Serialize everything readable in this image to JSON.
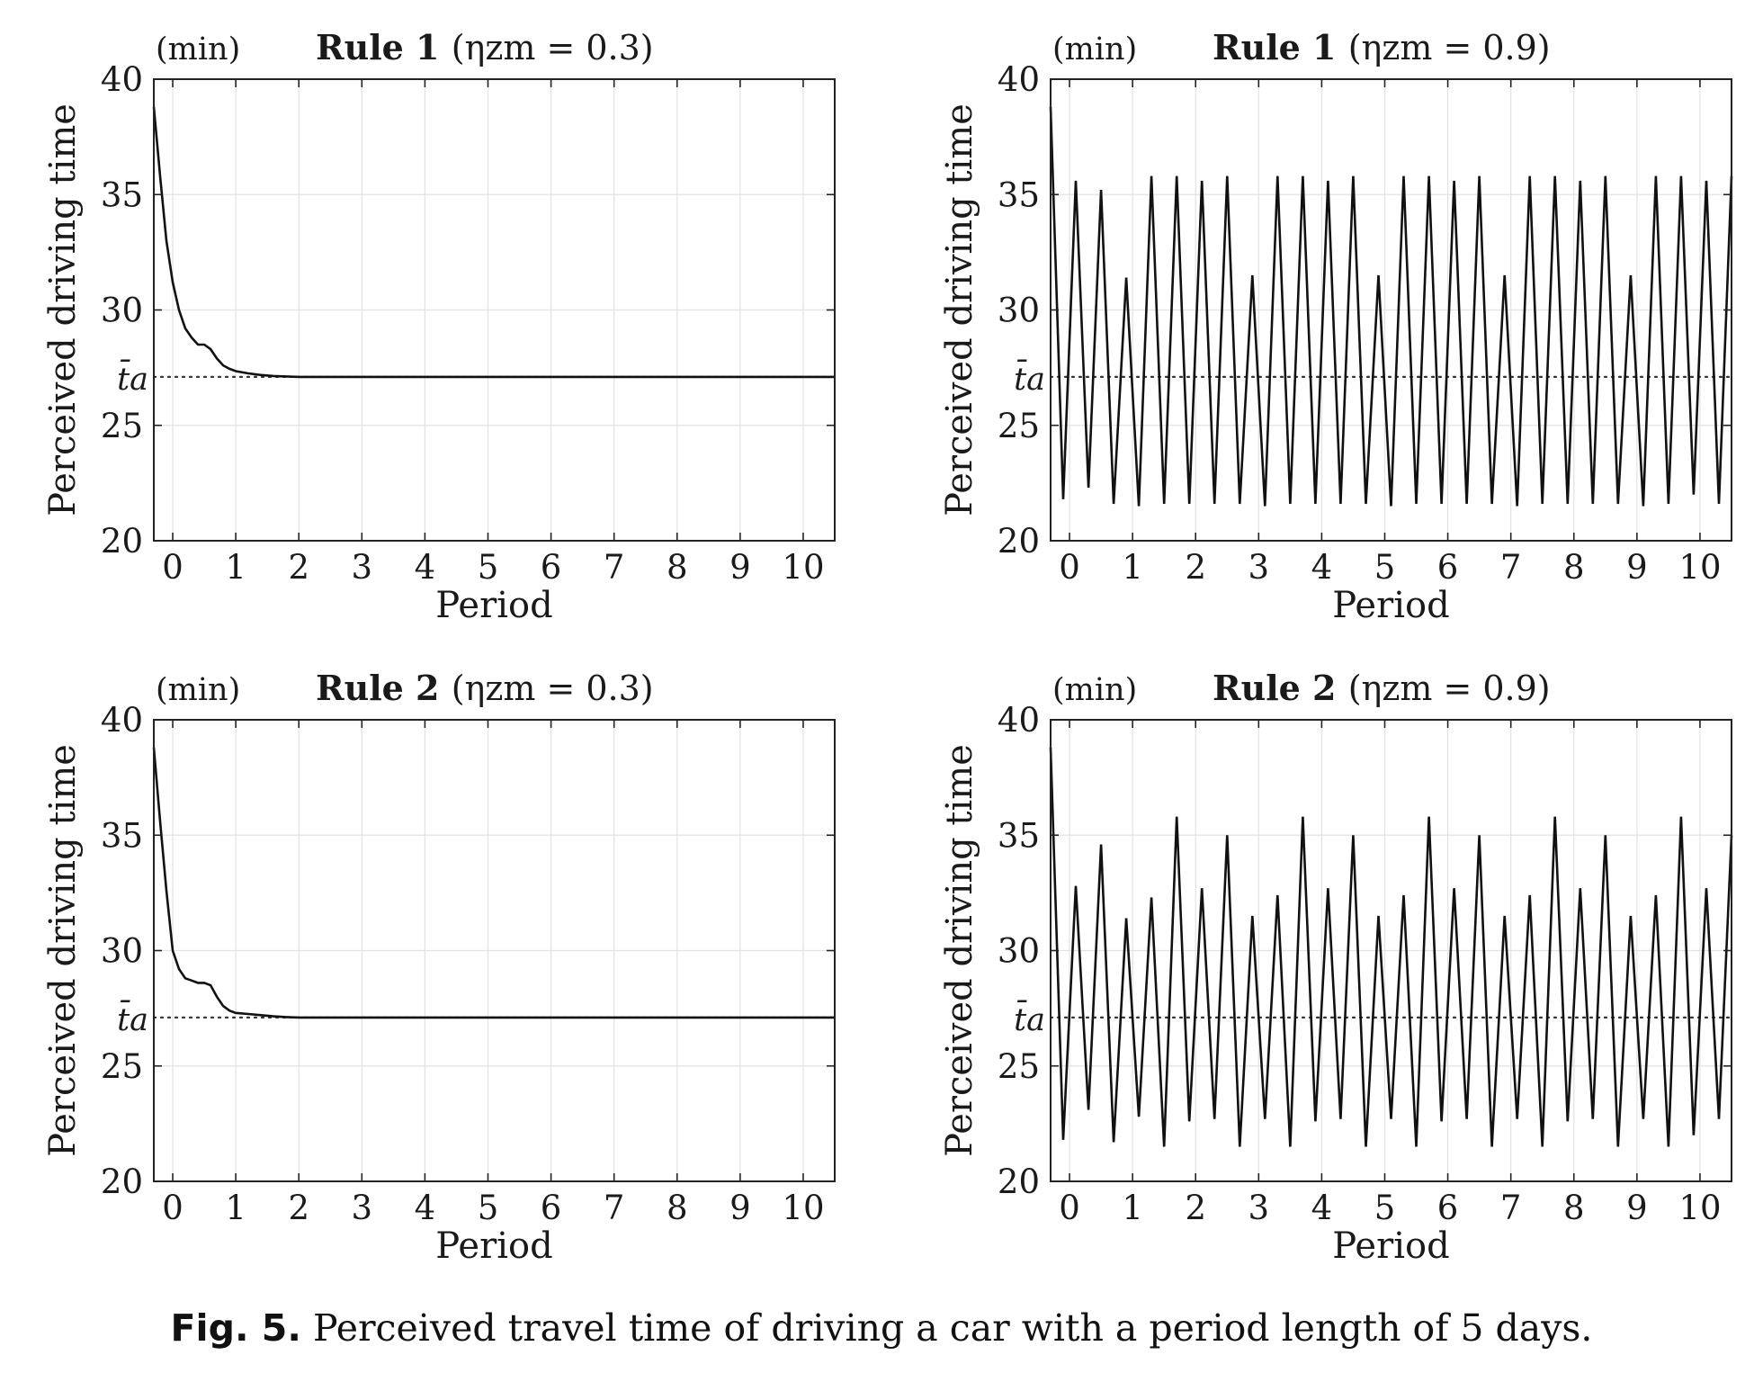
{
  "figure": {
    "caption_lead": "Fig. 5.",
    "caption_text": "Perceived travel time of driving a car with a period length of 5 days."
  },
  "colors": {
    "line": "#111111",
    "grid": "#e2e2e2",
    "grid_accent": "#f4d6d6",
    "reference": "#333333",
    "frame": "#222222"
  },
  "chart_data": [
    {
      "type": "line",
      "title_bold": "Rule 1",
      "title_param": "(ηzm = 0.3)",
      "unit": "(min)",
      "xlabel": "Period",
      "ylabel": "Perceived driving time",
      "xlim": [
        -0.3,
        10.5
      ],
      "ylim": [
        20,
        40
      ],
      "xticks": [
        0,
        1,
        2,
        3,
        4,
        5,
        6,
        7,
        8,
        9,
        10
      ],
      "yticks": [
        20,
        25,
        30,
        35,
        40
      ],
      "grid": true,
      "reference_line": {
        "label": "t̄a",
        "y": 27.1
      },
      "series": [
        {
          "x": [
            -0.3,
            -0.2,
            -0.1,
            0,
            0.1,
            0.2,
            0.3,
            0.4,
            0.5,
            0.6,
            0.7,
            0.8,
            0.9,
            1.0,
            1.2,
            1.4,
            1.6,
            1.8,
            2.0,
            2.5,
            3,
            4,
            5,
            6,
            7,
            8,
            9,
            10,
            10.5
          ],
          "y": [
            38.8,
            35.8,
            33.0,
            31.2,
            30.0,
            29.2,
            28.8,
            28.5,
            28.5,
            28.3,
            27.9,
            27.6,
            27.45,
            27.35,
            27.25,
            27.18,
            27.14,
            27.12,
            27.1,
            27.1,
            27.1,
            27.1,
            27.1,
            27.1,
            27.1,
            27.1,
            27.1,
            27.1,
            27.1
          ]
        }
      ]
    },
    {
      "type": "line",
      "title_bold": "Rule 1",
      "title_param": "(ηzm = 0.9)",
      "unit": "(min)",
      "xlabel": "Period",
      "ylabel": "Perceived driving time",
      "xlim": [
        -0.3,
        10.5
      ],
      "ylim": [
        20,
        40
      ],
      "xticks": [
        0,
        1,
        2,
        3,
        4,
        5,
        6,
        7,
        8,
        9,
        10
      ],
      "yticks": [
        20,
        25,
        30,
        35,
        40
      ],
      "grid": true,
      "reference_line": {
        "label": "t̄a",
        "y": 27.1
      },
      "series": [
        {
          "x": [
            -0.3,
            -0.1,
            0.1,
            0.3,
            0.5,
            0.7,
            0.9,
            1.1,
            1.3,
            1.5,
            1.7,
            1.9,
            2.1,
            2.3,
            2.5,
            2.7,
            2.9,
            3.1,
            3.3,
            3.5,
            3.7,
            3.9,
            4.1,
            4.3,
            4.5,
            4.7,
            4.9,
            5.1,
            5.3,
            5.5,
            5.7,
            5.9,
            6.1,
            6.3,
            6.5,
            6.7,
            6.9,
            7.1,
            7.3,
            7.5,
            7.7,
            7.9,
            8.1,
            8.3,
            8.5,
            8.7,
            8.9,
            9.1,
            9.3,
            9.5,
            9.7,
            9.9,
            10.1,
            10.3,
            10.5
          ],
          "y": [
            38.8,
            21.8,
            35.6,
            22.3,
            35.2,
            21.6,
            31.4,
            21.5,
            35.8,
            21.6,
            35.8,
            21.6,
            35.6,
            21.6,
            35.8,
            21.6,
            31.5,
            21.5,
            35.8,
            21.6,
            35.8,
            21.6,
            35.6,
            21.6,
            35.8,
            21.6,
            31.5,
            21.5,
            35.8,
            21.6,
            35.8,
            21.6,
            35.6,
            21.6,
            35.8,
            21.6,
            31.5,
            21.5,
            35.8,
            21.6,
            35.8,
            21.6,
            35.6,
            21.6,
            35.8,
            21.6,
            31.5,
            21.5,
            35.8,
            21.6,
            35.8,
            22.0,
            35.6,
            21.6,
            35.8
          ]
        }
      ]
    },
    {
      "type": "line",
      "title_bold": "Rule 2",
      "title_param": "(ηzm = 0.3)",
      "unit": "(min)",
      "xlabel": "Period",
      "ylabel": "Perceived driving time",
      "xlim": [
        -0.3,
        10.5
      ],
      "ylim": [
        20,
        40
      ],
      "xticks": [
        0,
        1,
        2,
        3,
        4,
        5,
        6,
        7,
        8,
        9,
        10
      ],
      "yticks": [
        20,
        25,
        30,
        35,
        40
      ],
      "grid": true,
      "reference_line": {
        "label": "t̄a",
        "y": 27.1
      },
      "series": [
        {
          "x": [
            -0.3,
            -0.2,
            -0.1,
            0,
            0.1,
            0.2,
            0.3,
            0.4,
            0.5,
            0.6,
            0.7,
            0.8,
            0.9,
            1.0,
            1.2,
            1.4,
            1.6,
            1.8,
            2.0,
            2.5,
            3,
            4,
            5,
            6,
            7,
            8,
            9,
            10,
            10.5
          ],
          "y": [
            38.8,
            35.6,
            32.6,
            30.0,
            29.2,
            28.8,
            28.7,
            28.6,
            28.6,
            28.5,
            28.0,
            27.6,
            27.4,
            27.3,
            27.25,
            27.2,
            27.15,
            27.12,
            27.1,
            27.1,
            27.1,
            27.1,
            27.1,
            27.1,
            27.1,
            27.1,
            27.1,
            27.1,
            27.1
          ]
        }
      ]
    },
    {
      "type": "line",
      "title_bold": "Rule 2",
      "title_param": "(ηzm = 0.9)",
      "unit": "(min)",
      "xlabel": "Period",
      "ylabel": "Perceived driving time",
      "xlim": [
        -0.3,
        10.5
      ],
      "ylim": [
        20,
        40
      ],
      "xticks": [
        0,
        1,
        2,
        3,
        4,
        5,
        6,
        7,
        8,
        9,
        10
      ],
      "yticks": [
        20,
        25,
        30,
        35,
        40
      ],
      "grid": true,
      "reference_line": {
        "label": "t̄a",
        "y": 27.1
      },
      "series": [
        {
          "x": [
            -0.3,
            -0.1,
            0.1,
            0.3,
            0.5,
            0.7,
            0.9,
            1.1,
            1.3,
            1.5,
            1.7,
            1.9,
            2.1,
            2.3,
            2.5,
            2.7,
            2.9,
            3.1,
            3.3,
            3.5,
            3.7,
            3.9,
            4.1,
            4.3,
            4.5,
            4.7,
            4.9,
            5.1,
            5.3,
            5.5,
            5.7,
            5.9,
            6.1,
            6.3,
            6.5,
            6.7,
            6.9,
            7.1,
            7.3,
            7.5,
            7.7,
            7.9,
            8.1,
            8.3,
            8.5,
            8.7,
            8.9,
            9.1,
            9.3,
            9.5,
            9.7,
            9.9,
            10.1,
            10.3,
            10.5
          ],
          "y": [
            38.8,
            21.8,
            32.8,
            23.1,
            34.6,
            21.7,
            31.4,
            22.8,
            32.3,
            21.5,
            35.8,
            22.6,
            32.7,
            22.7,
            35.0,
            21.5,
            31.5,
            22.7,
            32.4,
            21.5,
            35.8,
            22.6,
            32.7,
            22.7,
            35.0,
            21.5,
            31.5,
            22.7,
            32.4,
            21.5,
            35.8,
            22.6,
            32.7,
            22.7,
            35.0,
            21.5,
            31.5,
            22.7,
            32.4,
            21.5,
            35.8,
            22.6,
            32.7,
            22.7,
            35.0,
            21.5,
            31.5,
            22.7,
            32.4,
            21.5,
            35.8,
            22.0,
            32.7,
            22.7,
            35.0
          ]
        }
      ]
    }
  ]
}
